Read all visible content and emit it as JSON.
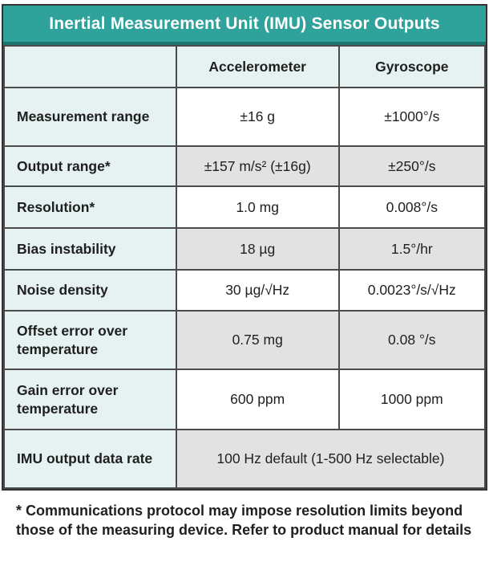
{
  "chart_data": {
    "type": "table",
    "title": "Inertial Measurement Unit (IMU) Sensor Outputs",
    "columns": [
      "",
      "Accelerometer",
      "Gyroscope"
    ],
    "rows": [
      {
        "label": "Measurement range",
        "accelerometer": "±16 g",
        "gyroscope": "±1000°/s"
      },
      {
        "label": "Output range*",
        "accelerometer": "±157 m/s² (±16g)",
        "gyroscope": "±250°/s"
      },
      {
        "label": "Resolution*",
        "accelerometer": "1.0 mg",
        "gyroscope": "0.008°/s"
      },
      {
        "label": "Bias instability",
        "accelerometer": "18 µg",
        "gyroscope": "1.5°/hr"
      },
      {
        "label": "Noise density",
        "accelerometer": "30 µg/√Hz",
        "gyroscope": "0.0023°/s/√Hz"
      },
      {
        "label": "Offset error over temperature",
        "accelerometer": "0.75 mg",
        "gyroscope": "0.08 °/s"
      },
      {
        "label": "Gain error over temperature",
        "accelerometer": "600 ppm",
        "gyroscope": "1000 ppm"
      },
      {
        "label": "IMU output data rate",
        "value": "100 Hz default (1-500 Hz selectable)"
      }
    ],
    "footnote": "* Communications protocol may impose resolution limits beyond those of the measuring device. Refer to product manual for details",
    "layout": {
      "shading": "value cells alternate white / light gray by row; label column mint; merged value cell in last row spans both sensor columns"
    }
  },
  "colors": {
    "title_bar_teal": "#2fa29b",
    "title_bar_teal_dark_edge": "#1e756f",
    "title_text": "#ffffff",
    "label_column_mint": "#e5f2f1",
    "alt_row_gray": "#e2e2e2",
    "row_white": "#ffffff",
    "grid_border": "#4a4a4a",
    "text": "#1f1f1f"
  }
}
